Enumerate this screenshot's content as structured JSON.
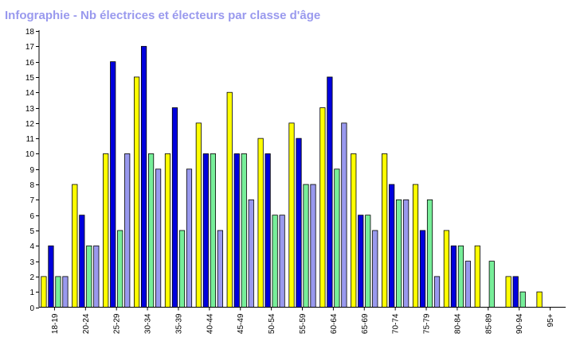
{
  "chart_data": {
    "type": "bar",
    "title": "Infographie - Nb électrices et électeurs par classe d'âge",
    "xlabel": "",
    "ylabel": "",
    "ylim": [
      0,
      18
    ],
    "yticks": [
      0,
      1,
      2,
      3,
      4,
      5,
      6,
      7,
      8,
      9,
      10,
      11,
      12,
      13,
      14,
      15,
      16,
      17,
      18
    ],
    "grid": false,
    "legend": "none",
    "categories": [
      "18-19",
      "20-24",
      "25-29",
      "30-34",
      "35-39",
      "40-44",
      "45-49",
      "50-54",
      "55-59",
      "60-64",
      "65-69",
      "70-74",
      "75-79",
      "80-84",
      "85-89",
      "90-94",
      "95+"
    ],
    "series": [
      {
        "color": "#ffff00",
        "values": [
          2,
          8,
          10,
          15,
          10,
          12,
          14,
          11,
          12,
          13,
          10,
          10,
          8,
          5,
          4,
          2,
          1
        ]
      },
      {
        "color": "#0000dd",
        "values": [
          4,
          6,
          16,
          17,
          13,
          10,
          10,
          10,
          11,
          15,
          6,
          8,
          5,
          4,
          0,
          2,
          0
        ]
      },
      {
        "color": "#77ee99",
        "values": [
          2,
          4,
          5,
          10,
          5,
          10,
          10,
          6,
          8,
          9,
          6,
          7,
          7,
          4,
          3,
          1,
          0
        ]
      },
      {
        "color": "#9999ee",
        "values": [
          2,
          4,
          10,
          9,
          9,
          5,
          7,
          6,
          8,
          12,
          5,
          7,
          2,
          3,
          0,
          0,
          0
        ]
      }
    ]
  }
}
